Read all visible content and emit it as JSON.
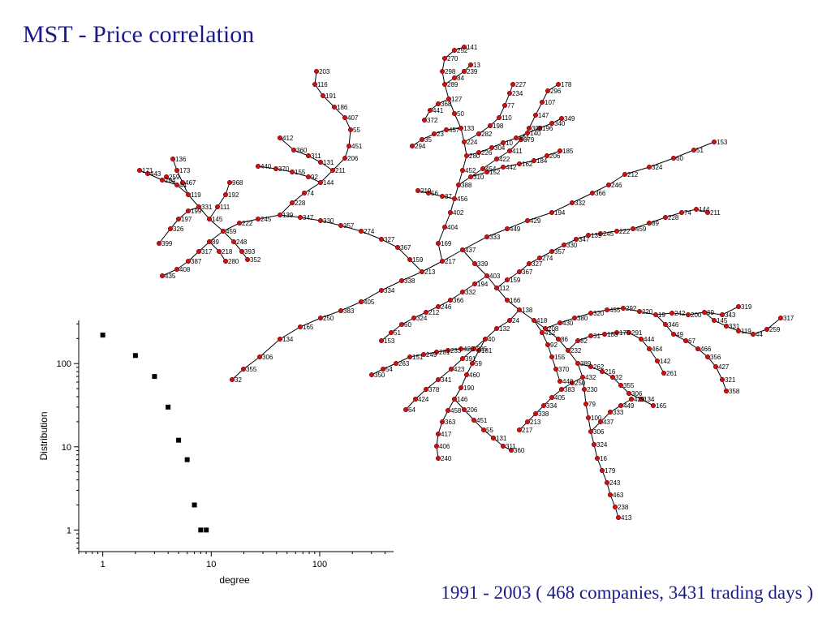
{
  "title": "MST - Price correlation",
  "caption": "1991 - 2003  ( 468 companies, 3431 trading days )",
  "colors": {
    "title": "#1a1a8c",
    "node": "#cc1111",
    "edge": "#000000"
  },
  "tree": {
    "type": "minimum-spanning-tree",
    "node_labels": [
      "32",
      "355",
      "306",
      "134",
      "165",
      "250",
      "383",
      "405",
      "334",
      "338",
      "213",
      "217",
      "437",
      "333",
      "449",
      "429",
      "194",
      "332",
      "366",
      "246",
      "212",
      "324",
      "60",
      "51",
      "153",
      "159",
      "367",
      "327",
      "274",
      "357",
      "330",
      "347",
      "139",
      "245",
      "222",
      "459",
      "89",
      "228",
      "74",
      "144",
      "211",
      "206",
      "451",
      "55",
      "131",
      "311",
      "360",
      "412",
      "92",
      "155",
      "370",
      "440",
      "145",
      "331",
      "119",
      "44",
      "259",
      "317",
      "387",
      "408",
      "435",
      "204",
      "443",
      "171",
      "467",
      "173",
      "136",
      "111",
      "192",
      "968",
      "248",
      "393",
      "352",
      "218",
      "280",
      "199",
      "197",
      "326",
      "399",
      "407",
      "186",
      "191",
      "116",
      "203",
      "169",
      "404",
      "402",
      "456",
      "388",
      "452",
      "280",
      "224",
      "133",
      "50",
      "127",
      "289",
      "298",
      "270",
      "252",
      "141",
      "310",
      "454",
      "422",
      "411",
      "379",
      "398",
      "147",
      "107",
      "296",
      "178",
      "282",
      "198",
      "110",
      "77",
      "234",
      "227",
      "457",
      "23",
      "35",
      "294",
      "87",
      "56",
      "219",
      "226",
      "304",
      "10",
      "421",
      "140",
      "196",
      "340",
      "349",
      "152",
      "442",
      "162",
      "184",
      "206",
      "185",
      "368",
      "441",
      "372",
      "84",
      "239",
      "13",
      "339",
      "403",
      "112",
      "166",
      "138",
      "418",
      "208",
      "86",
      "232",
      "389",
      "432",
      "230",
      "79",
      "100",
      "306",
      "324",
      "16",
      "179",
      "243",
      "463",
      "238",
      "413",
      "24",
      "132",
      "40",
      "285",
      "391",
      "423",
      "341",
      "378",
      "424",
      "64",
      "181",
      "59",
      "460",
      "190",
      "146",
      "458",
      "363",
      "417",
      "406",
      "240",
      "420",
      "233",
      "281",
      "249",
      "151",
      "263",
      "54",
      "350",
      "430",
      "380",
      "320",
      "455",
      "292",
      "220",
      "19",
      "242",
      "200",
      "69",
      "343",
      "319",
      "346",
      "49",
      "67",
      "466",
      "356",
      "427",
      "321",
      "358",
      "82",
      "31",
      "188",
      "175",
      "291",
      "444",
      "464",
      "142",
      "261",
      "262",
      "216"
    ]
  },
  "chart_data": {
    "type": "scatter",
    "x_scale": "log",
    "y_scale": "log",
    "xlabel": "degree",
    "ylabel": "Distribution",
    "xlim": [
      0.6,
      480
    ],
    "ylim": [
      0.55,
      330
    ],
    "x_ticks": [
      1,
      10,
      100
    ],
    "y_ticks": [
      1,
      10,
      100
    ],
    "x_tick_labels": [
      "1",
      "10",
      "100"
    ],
    "y_tick_labels": [
      "1",
      "10",
      "100"
    ],
    "points": [
      {
        "x": 1,
        "y": 220
      },
      {
        "x": 2,
        "y": 125
      },
      {
        "x": 3,
        "y": 70
      },
      {
        "x": 4,
        "y": 30
      },
      {
        "x": 5,
        "y": 12
      },
      {
        "x": 6,
        "y": 7
      },
      {
        "x": 7,
        "y": 2
      },
      {
        "x": 8,
        "y": 1
      },
      {
        "x": 9,
        "y": 1
      }
    ]
  }
}
